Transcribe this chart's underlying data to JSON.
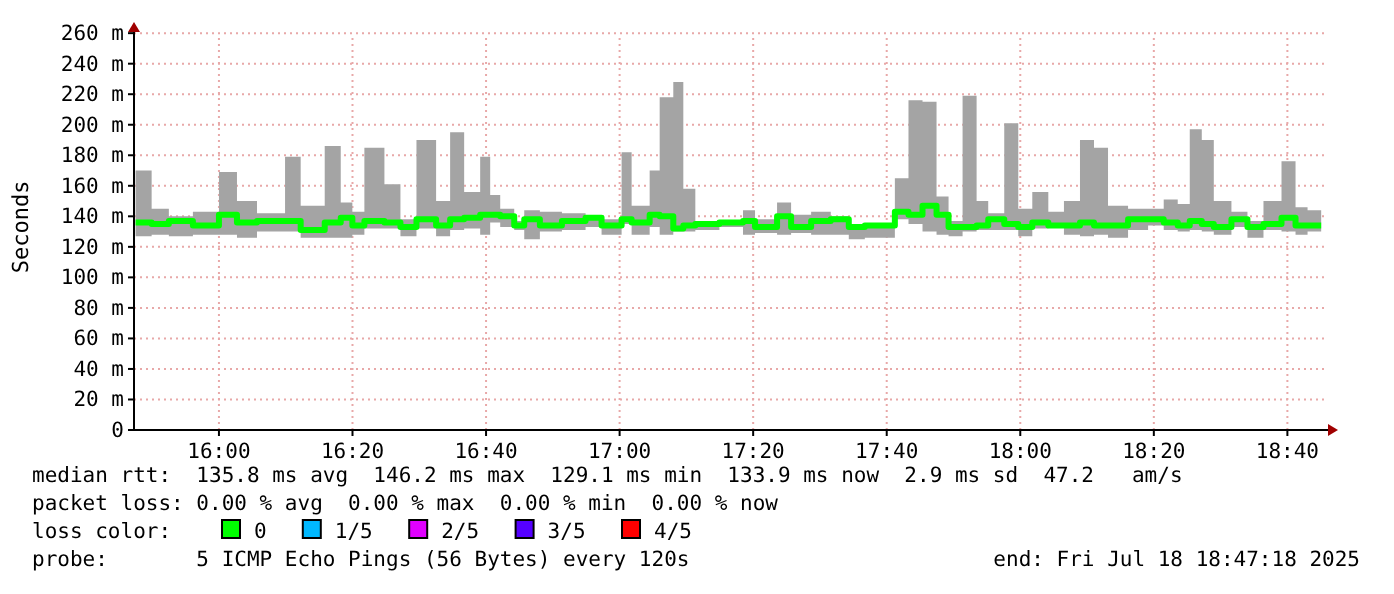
{
  "chart_data": {
    "type": "step",
    "ylabel": "Seconds",
    "legend_title": "loss color:",
    "legend": "bottom",
    "grid": true,
    "xlim": [
      15.788,
      18.788
    ],
    "ylim": [
      0,
      266
    ],
    "xticks": [
      {
        "value": 16,
        "label": "16:00"
      },
      {
        "value": 16.333333,
        "label": "16:20"
      },
      {
        "value": 16.666667,
        "label": "16:40"
      },
      {
        "value": 17,
        "label": "17:00"
      },
      {
        "value": 17.333333,
        "label": "17:20"
      },
      {
        "value": 17.666667,
        "label": "17:40"
      },
      {
        "value": 18,
        "label": "18:00"
      },
      {
        "value": 18.333333,
        "label": "18:20"
      },
      {
        "value": 18.666667,
        "label": "18:40"
      }
    ],
    "yticks": [
      0,
      {
        "value": 20,
        "label": "20 m"
      },
      {
        "value": 40,
        "label": "40 m"
      },
      {
        "value": 60,
        "label": "60 m"
      },
      {
        "value": 80,
        "label": "80 m"
      },
      {
        "value": 100,
        "label": "100 m"
      },
      {
        "value": 120,
        "label": "120 m"
      },
      {
        "value": 140,
        "label": "140 m"
      },
      {
        "value": 160,
        "label": "160 m"
      },
      {
        "value": 180,
        "label": "180 m"
      },
      {
        "value": 200,
        "label": "200 m"
      },
      {
        "value": 220,
        "label": "220 m"
      },
      {
        "value": 240,
        "label": "240 m"
      },
      {
        "value": 260,
        "label": "260 m"
      }
    ],
    "series": [
      {
        "name": "0",
        "color": "#00ff00",
        "x": [
          15.792,
          15.832,
          15.875,
          15.935,
          16.0,
          16.045,
          16.095,
          16.165,
          16.204,
          16.264,
          16.304,
          16.333,
          16.363,
          16.413,
          16.453,
          16.493,
          16.542,
          16.577,
          16.612,
          16.652,
          16.677,
          16.702,
          16.737,
          16.762,
          16.801,
          16.856,
          16.915,
          16.955,
          17.005,
          17.03,
          17.075,
          17.1,
          17.134,
          17.159,
          17.189,
          17.249,
          17.308,
          17.338,
          17.393,
          17.428,
          17.478,
          17.527,
          17.572,
          17.612,
          17.687,
          17.721,
          17.756,
          17.791,
          17.821,
          17.856,
          17.891,
          17.92,
          17.96,
          17.995,
          18.03,
          18.07,
          18.109,
          18.149,
          18.184,
          18.219,
          18.269,
          18.319,
          18.358,
          18.393,
          18.423,
          18.453,
          18.483,
          18.527,
          18.567,
          18.607,
          18.652,
          18.687,
          18.717,
          18.751
        ],
        "values": [
          136,
          135,
          137,
          134,
          141,
          136,
          137,
          137,
          131,
          136,
          139,
          134,
          137,
          136,
          133,
          138,
          134,
          138,
          139,
          141,
          141,
          140,
          134,
          138,
          134,
          137,
          139,
          134,
          138,
          136,
          141,
          140,
          132,
          134,
          135,
          136,
          137,
          133,
          140,
          133,
          137,
          138,
          133,
          134,
          143,
          141,
          147,
          141,
          133,
          133,
          134,
          138,
          135,
          133,
          136,
          134,
          134,
          136,
          134,
          134,
          138,
          138,
          136,
          134,
          137,
          135,
          133,
          138,
          133,
          135,
          139,
          134,
          134,
          134
        ],
        "lower": [
          127,
          128,
          127,
          128,
          128,
          126,
          130,
          130,
          126,
          126,
          126,
          128,
          132,
          132,
          127,
          132,
          127,
          131,
          132,
          128,
          136,
          133,
          131,
          125,
          130,
          131,
          133,
          128,
          135,
          128,
          133,
          128,
          130,
          130,
          131,
          133,
          128,
          129,
          128,
          129,
          128,
          128,
          125,
          126,
          138,
          135,
          130,
          128,
          127,
          130,
          131,
          131,
          131,
          127,
          132,
          133,
          128,
          127,
          128,
          126,
          131,
          134,
          131,
          130,
          131,
          130,
          128,
          133,
          126,
          131,
          130,
          128,
          130,
          130
        ],
        "upper": [
          170,
          145,
          140,
          143,
          169,
          150,
          142,
          179,
          147,
          186,
          149,
          143,
          185,
          161,
          138,
          190,
          150,
          195,
          156,
          179,
          154,
          145,
          137,
          144,
          143,
          142,
          140,
          138,
          182,
          147,
          170,
          218,
          228,
          158,
          137,
          137,
          144,
          138,
          149,
          141,
          143,
          140,
          135,
          135,
          165,
          216,
          215,
          153,
          137,
          219,
          150,
          142,
          201,
          145,
          156,
          143,
          150,
          190,
          185,
          147,
          145,
          145,
          151,
          148,
          197,
          190,
          150,
          143,
          137,
          150,
          176,
          146,
          144,
          144
        ]
      },
      {
        "name": "1/5",
        "color": "#00b8ff"
      },
      {
        "name": "2/5",
        "color": "#e000ff"
      },
      {
        "name": "3/5",
        "color": "#5500ff"
      },
      {
        "name": "4/5",
        "color": "#ff0000"
      }
    ],
    "annotations": [
      "median rtt:  135.8 ms avg  146.2 ms max  129.1 ms min  133.9 ms now  2.9 ms sd  47.2   am/s",
      "packet loss: 0.00 % avg  0.00 % max  0.00 % min  0.00 % now",
      "probe:       5 ICMP Echo Pings (56 Bytes) every 120s",
      "end: Fri Jul 18 18:47:18 2025"
    ]
  }
}
